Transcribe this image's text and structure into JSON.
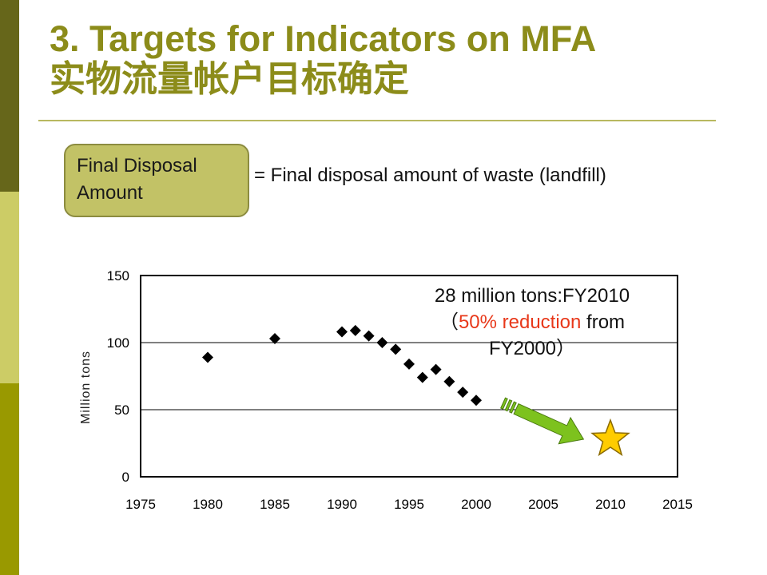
{
  "title": {
    "line1": "3. Targets for Indicators on MFA",
    "line2": "实物流量帐户目标确定"
  },
  "term": {
    "label_line1": "Final Disposal",
    "label_line2": "Amount",
    "definition": "= Final disposal amount of waste (landfill)"
  },
  "annotation": {
    "line1": "28 million tons:FY2010",
    "open": "（",
    "highlight": "50% reduction",
    "after": " from",
    "line3": "FY2000）"
  },
  "colors": {
    "title": "#8c8c1a",
    "box_fill": "#c2c266",
    "highlight": "#e8381a",
    "arrow": "#7dc21e",
    "star": "#ffcc00"
  },
  "chart_data": {
    "type": "scatter",
    "title": "",
    "xlabel": "",
    "ylabel": "Million tons",
    "xlim": [
      1975,
      2015
    ],
    "ylim": [
      0,
      150
    ],
    "xticks": [
      1975,
      1980,
      1985,
      1990,
      1995,
      2000,
      2005,
      2010,
      2015
    ],
    "yticks": [
      0,
      50,
      100,
      150
    ],
    "grid_y": [
      50,
      100
    ],
    "series": [
      {
        "marker": "diamond",
        "points": [
          [
            1980,
            89
          ],
          [
            1985,
            103
          ],
          [
            1990,
            108
          ],
          [
            1991,
            109
          ],
          [
            1992,
            105
          ],
          [
            1993,
            100
          ],
          [
            1994,
            95
          ],
          [
            1995,
            84
          ],
          [
            1996,
            74
          ],
          [
            1997,
            80
          ],
          [
            1998,
            71
          ],
          [
            1999,
            63
          ],
          [
            2000,
            57
          ]
        ]
      }
    ],
    "target": {
      "x": 2010,
      "y": 28,
      "marker": "star"
    },
    "trend_arrow": {
      "from": [
        2002,
        55
      ],
      "to": [
        2008,
        28
      ]
    }
  }
}
